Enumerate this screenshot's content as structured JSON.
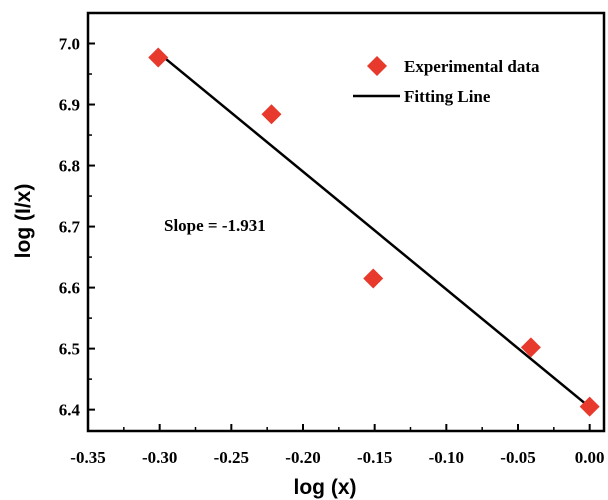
{
  "chart_data": {
    "type": "scatter",
    "title": "",
    "xlabel": "log (x)",
    "ylabel": "log (I/x)",
    "xlim": [
      -0.35,
      0.01
    ],
    "ylim": [
      6.365,
      7.05
    ],
    "xticks": [
      -0.35,
      -0.3,
      -0.25,
      -0.2,
      -0.15,
      -0.1,
      -0.05,
      0.0
    ],
    "xtick_labels": [
      "-0.35",
      "-0.30",
      "-0.25",
      "-0.20",
      "-0.15",
      "-0.10",
      "-0.05",
      "0.00"
    ],
    "yticks": [
      6.4,
      6.5,
      6.6,
      6.7,
      6.8,
      6.9,
      7.0
    ],
    "ytick_labels": [
      "6.4",
      "6.5",
      "6.6",
      "6.7",
      "6.8",
      "6.9",
      "7.0"
    ],
    "grid": false,
    "legend_position": "top-right",
    "series": [
      {
        "name": "Experimental data",
        "kind": "scatter",
        "marker": "diamond",
        "color": "#e8392d",
        "x": [
          -0.301,
          -0.222,
          -0.151,
          -0.041,
          0.0
        ],
        "y": [
          6.977,
          6.884,
          6.615,
          6.502,
          6.405
        ]
      },
      {
        "name": "Fitting Line",
        "kind": "line",
        "color": "#000000",
        "x": [
          -0.301,
          0.0
        ],
        "y": [
          6.985,
          6.404
        ]
      }
    ],
    "annotations": [
      {
        "text": "Slope = -1.931"
      }
    ]
  }
}
